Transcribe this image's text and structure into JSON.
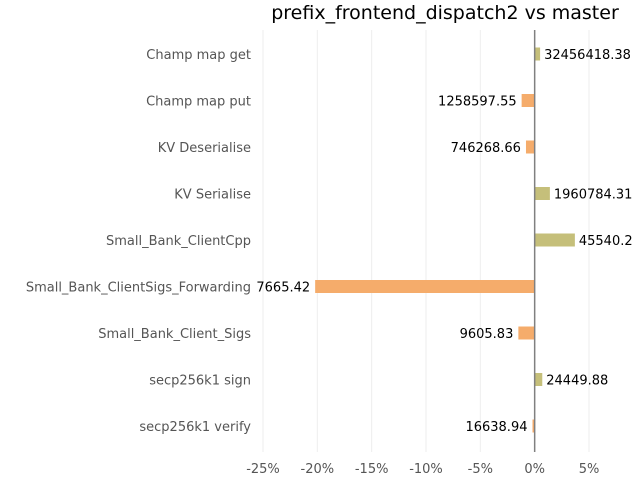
{
  "chart_data": {
    "type": "bar",
    "orientation": "horizontal",
    "title": "prefix_frontend_dispatch2 vs master",
    "xlabel": "",
    "ylabel": "",
    "xlim": [
      -25,
      5
    ],
    "xticks": [
      -25,
      -20,
      -15,
      -10,
      -5,
      0,
      5
    ],
    "xtick_labels": [
      "-25%",
      "-20%",
      "-15%",
      "-10%",
      "-5%",
      "0%",
      "5%"
    ],
    "grid": "vertical",
    "categories": [
      "Champ map get",
      "Champ map put",
      "KV Deserialise",
      "KV Serialise",
      "Small_Bank_ClientCpp",
      "Small_Bank_ClientSigs_Forwarding",
      "Small_Bank_Client_Sigs",
      "secp256k1 sign",
      "secp256k1 verify"
    ],
    "values": [
      0.5,
      -1.2,
      -0.8,
      1.4,
      3.7,
      -20.2,
      -1.5,
      0.7,
      -0.2
    ],
    "data_labels": [
      "32456418.38",
      "1258597.55",
      "746268.66",
      "1960784.31",
      "45540.2",
      "7665.42",
      "9605.83",
      "24449.88",
      "16638.94"
    ],
    "colors": {
      "positive": "#c5bf7a",
      "negative": "#f5ac6b",
      "zero_line": "#808080",
      "grid": "#eeeeee"
    }
  }
}
